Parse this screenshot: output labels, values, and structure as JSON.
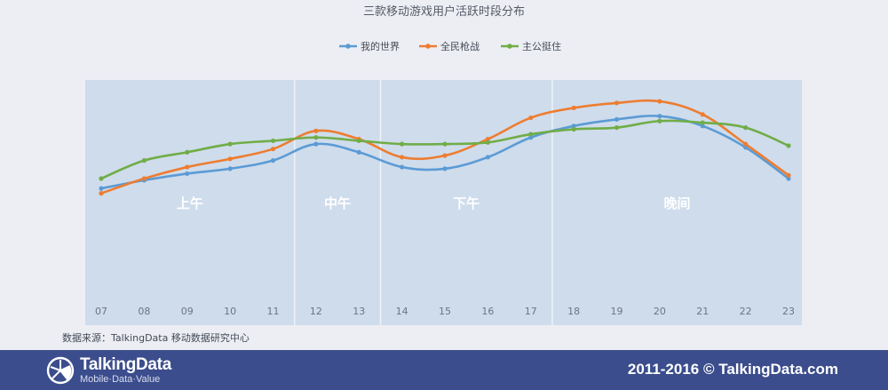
{
  "chart_data": {
    "type": "line",
    "title": "三款移动游戏用户活跃时段分布",
    "categories": [
      "07",
      "08",
      "09",
      "10",
      "11",
      "12",
      "13",
      "14",
      "15",
      "16",
      "17",
      "18",
      "19",
      "20",
      "21",
      "22",
      "23"
    ],
    "periods": [
      {
        "label": "上午",
        "from": "07",
        "to": "11"
      },
      {
        "label": "中午",
        "from": "12",
        "to": "13"
      },
      {
        "label": "下午",
        "from": "14",
        "to": "17"
      },
      {
        "label": "晚间",
        "from": "18",
        "to": "23"
      }
    ],
    "series": [
      {
        "name": "我的世界",
        "color": "#5b9bd5",
        "values": [
          34,
          39,
          43,
          46,
          51,
          61,
          56,
          47,
          46,
          53,
          65,
          72,
          76,
          78,
          72,
          59,
          40
        ]
      },
      {
        "name": "全民枪战",
        "color": "#ed7d31",
        "values": [
          31,
          40,
          47,
          52,
          58,
          69,
          64,
          53,
          54,
          64,
          77,
          83,
          86,
          87,
          79,
          61,
          42
        ]
      },
      {
        "name": "主公挺住",
        "color": "#70ad47",
        "values": [
          40,
          51,
          56,
          61,
          63,
          65,
          63,
          61,
          61,
          62,
          67,
          70,
          71,
          75,
          74,
          71,
          60
        ]
      }
    ],
    "ylim": [
      0,
      100
    ],
    "legend_position": "top",
    "grid": false,
    "smooth": true
  },
  "source_note": "数据来源：TalkingData   移动数据研究中心",
  "footer": {
    "logo_name": "TalkingData",
    "logo_tagline": "Mobile·Data·Value",
    "copyright": "2011-2016 © TalkingData.com"
  }
}
